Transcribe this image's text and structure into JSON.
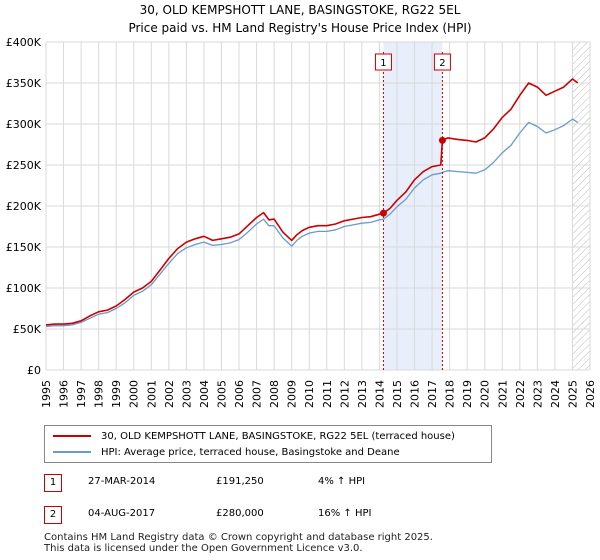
{
  "title_line1": "30, OLD KEMPSHOTT LANE, BASINGSTOKE, RG22 5EL",
  "title_line2": "Price paid vs. HM Land Registry's House Price Index (HPI)",
  "chart_data": {
    "type": "line",
    "title": "30, OLD KEMPSHOTT LANE, BASINGSTOKE, RG22 5EL — Price paid vs. HM Land Registry's House Price Index (HPI)",
    "xlabel": "",
    "ylabel": "",
    "xlim": [
      1995,
      2026
    ],
    "ylim": [
      0,
      400000
    ],
    "x_ticks": [
      "1995",
      "1996",
      "1997",
      "1998",
      "1999",
      "2000",
      "2001",
      "2002",
      "2003",
      "2004",
      "2005",
      "2006",
      "2007",
      "2008",
      "2009",
      "2010",
      "2011",
      "2012",
      "2013",
      "2014",
      "2015",
      "2016",
      "2017",
      "2018",
      "2019",
      "2020",
      "2021",
      "2022",
      "2023",
      "2024",
      "2025",
      "2026"
    ],
    "y_ticks": [
      0,
      50000,
      100000,
      150000,
      200000,
      250000,
      300000,
      350000,
      400000
    ],
    "y_tick_labels": [
      "£0",
      "£50K",
      "£100K",
      "£150K",
      "£200K",
      "£250K",
      "£300K",
      "£350K",
      "£400K"
    ],
    "grid": true,
    "series": [
      {
        "name": "30, OLD KEMPSHOTT LANE, BASINGSTOKE, RG22 5EL (terraced house)",
        "color": "#cc0000",
        "x": [
          1995.0,
          1995.5,
          1996.0,
          1996.5,
          1997.0,
          1997.5,
          1998.0,
          1998.5,
          1999.0,
          1999.5,
          2000.0,
          2000.5,
          2001.0,
          2001.5,
          2002.0,
          2002.5,
          2003.0,
          2003.5,
          2004.0,
          2004.5,
          2005.0,
          2005.5,
          2006.0,
          2006.5,
          2007.0,
          2007.4,
          2007.7,
          2008.0,
          2008.5,
          2009.0,
          2009.3,
          2009.6,
          2010.0,
          2010.5,
          2011.0,
          2011.5,
          2012.0,
          2012.5,
          2013.0,
          2013.5,
          2014.0,
          2014.23,
          2014.6,
          2015.0,
          2015.5,
          2016.0,
          2016.5,
          2017.0,
          2017.5,
          2017.59,
          2017.9,
          2018.5,
          2019.0,
          2019.5,
          2020.0,
          2020.5,
          2021.0,
          2021.5,
          2022.0,
          2022.5,
          2023.0,
          2023.5,
          2024.0,
          2024.5,
          2025.0,
          2025.3
        ],
        "values": [
          55000,
          56000,
          56000,
          57000,
          60000,
          66000,
          71000,
          73000,
          78000,
          86000,
          95000,
          100000,
          108000,
          122000,
          136000,
          148000,
          156000,
          160000,
          163000,
          158000,
          160000,
          162000,
          166000,
          176000,
          186000,
          192000,
          183000,
          184000,
          168000,
          158000,
          165000,
          170000,
          174000,
          176000,
          176000,
          178000,
          182000,
          184000,
          186000,
          187000,
          190000,
          191250,
          197000,
          207000,
          217000,
          232000,
          242000,
          248000,
          250000,
          280000,
          283000,
          281000,
          280000,
          278000,
          283000,
          294000,
          308000,
          318000,
          335000,
          350000,
          345000,
          335000,
          340000,
          345000,
          355000,
          350000
        ]
      },
      {
        "name": "HPI: Average price, terraced house, Basingstoke and Deane",
        "color": "#6a9acd",
        "x": [
          1995.0,
          1995.5,
          1996.0,
          1996.5,
          1997.0,
          1997.5,
          1998.0,
          1998.5,
          1999.0,
          1999.5,
          2000.0,
          2000.5,
          2001.0,
          2001.5,
          2002.0,
          2002.5,
          2003.0,
          2003.5,
          2004.0,
          2004.5,
          2005.0,
          2005.5,
          2006.0,
          2006.5,
          2007.0,
          2007.4,
          2007.7,
          2008.0,
          2008.5,
          2009.0,
          2009.3,
          2009.6,
          2010.0,
          2010.5,
          2011.0,
          2011.5,
          2012.0,
          2012.5,
          2013.0,
          2013.5,
          2014.0,
          2014.23,
          2014.6,
          2015.0,
          2015.5,
          2016.0,
          2016.5,
          2017.0,
          2017.5,
          2017.59,
          2017.9,
          2018.5,
          2019.0,
          2019.5,
          2020.0,
          2020.5,
          2021.0,
          2021.5,
          2022.0,
          2022.5,
          2023.0,
          2023.5,
          2024.0,
          2024.5,
          2025.0,
          2025.3
        ],
        "values": [
          53000,
          54000,
          54000,
          55000,
          58000,
          63000,
          68000,
          70000,
          75000,
          82000,
          91000,
          96000,
          104000,
          117000,
          130000,
          142000,
          149000,
          153000,
          156000,
          152000,
          153000,
          155000,
          159000,
          168000,
          178000,
          184000,
          176000,
          176000,
          161000,
          151000,
          158000,
          163000,
          167000,
          169000,
          169000,
          171000,
          175000,
          177000,
          179000,
          180000,
          183000,
          184000,
          190000,
          199000,
          208000,
          222000,
          232000,
          238000,
          240000,
          241000,
          243000,
          242000,
          241000,
          240000,
          244000,
          253000,
          265000,
          274000,
          289000,
          302000,
          297000,
          289000,
          293000,
          298000,
          306000,
          302000
        ]
      }
    ],
    "sales": [
      {
        "marker": "1",
        "x": 2014.23,
        "value": 191250
      },
      {
        "marker": "2",
        "x": 2017.59,
        "value": 280000
      }
    ]
  },
  "legend": {
    "property_label": "30, OLD KEMPSHOTT LANE, BASINGSTOKE, RG22 5EL (terraced house)",
    "hpi_label": "HPI: Average price, terraced house, Basingstoke and Deane"
  },
  "sales_table": [
    {
      "marker": "1",
      "date": "27-MAR-2014",
      "price": "£191,250",
      "hpi": "4% ↑ HPI"
    },
    {
      "marker": "2",
      "date": "04-AUG-2017",
      "price": "£280,000",
      "hpi": "16% ↑ HPI"
    }
  ],
  "footer": {
    "line1": "Contains HM Land Registry data © Crown copyright and database right 2025.",
    "line2": "This data is licensed under the Open Government Licence v3.0."
  },
  "colors": {
    "property": "#cc0000",
    "hpi": "#6a9acd",
    "shade": "#e8eefa",
    "grid": "#d9d9d9"
  }
}
